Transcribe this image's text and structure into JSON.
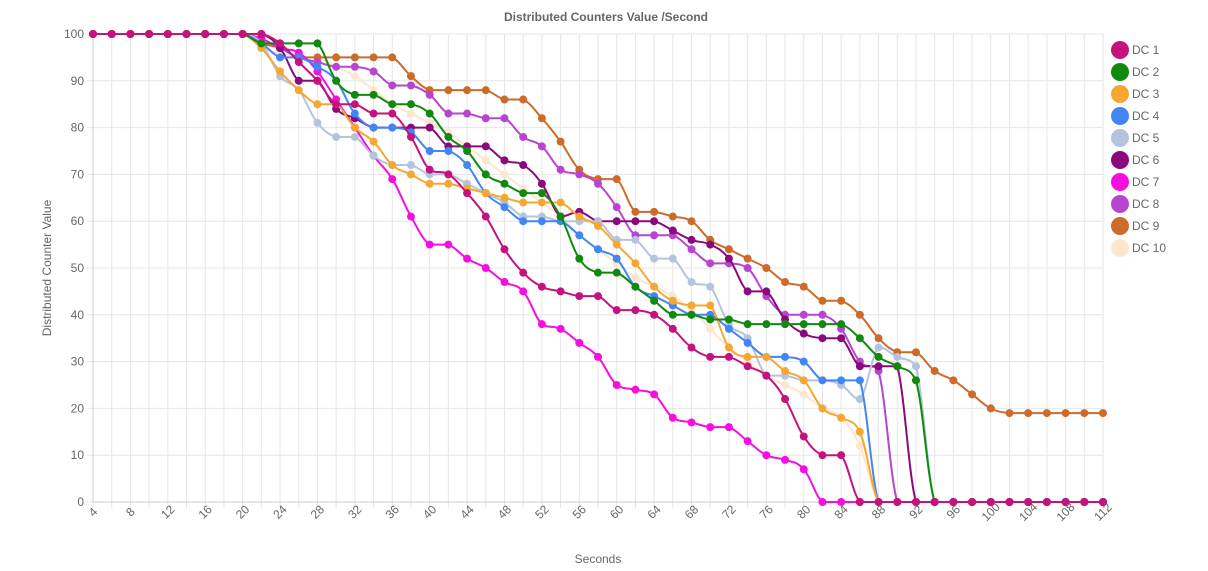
{
  "chart_data": {
    "type": "line",
    "title": "Distributed Counters Value /Second",
    "xlabel": "Seconds",
    "ylabel": "Distributed Counter Value",
    "xlim": [
      4,
      112
    ],
    "ylim": [
      0,
      100
    ],
    "x_ticks": [
      4,
      8,
      12,
      16,
      20,
      24,
      28,
      32,
      36,
      40,
      44,
      48,
      52,
      56,
      60,
      64,
      68,
      72,
      76,
      80,
      84,
      88,
      92,
      96,
      100,
      104,
      108,
      112
    ],
    "y_ticks": [
      0,
      10,
      20,
      30,
      40,
      50,
      60,
      70,
      80,
      90,
      100
    ],
    "grid": true,
    "legend_position": "right",
    "series": [
      {
        "name": "DC 1",
        "color": "#c4127f",
        "x": [
          4,
          6,
          8,
          10,
          12,
          14,
          16,
          18,
          20,
          22,
          24,
          26,
          28,
          30,
          32,
          34,
          36,
          38,
          40,
          42,
          44,
          46,
          48,
          50,
          52,
          54,
          56,
          58,
          60,
          62,
          64,
          66,
          68,
          70,
          72,
          74,
          76,
          78,
          80,
          82,
          84,
          86,
          88,
          90,
          92,
          94,
          96,
          98,
          100,
          102,
          104,
          106,
          108,
          110,
          112
        ],
        "y": [
          100,
          100,
          100,
          100,
          100,
          100,
          100,
          100,
          100,
          100,
          98,
          94,
          90,
          85,
          85,
          83,
          83,
          78,
          71,
          70,
          66,
          61,
          54,
          49,
          46,
          45,
          44,
          44,
          41,
          41,
          40,
          37,
          33,
          31,
          31,
          29,
          27,
          22,
          14,
          10,
          10,
          0,
          0,
          0,
          0,
          0,
          0,
          0,
          0,
          0,
          0,
          0,
          0,
          0,
          0
        ]
      },
      {
        "name": "DC 2",
        "color": "#0f8a0f",
        "x": [
          4,
          6,
          8,
          10,
          12,
          14,
          16,
          18,
          20,
          22,
          24,
          26,
          28,
          30,
          32,
          34,
          36,
          38,
          40,
          42,
          44,
          46,
          48,
          50,
          52,
          54,
          56,
          58,
          60,
          62,
          64,
          66,
          68,
          70,
          72,
          74,
          76,
          78,
          80,
          82,
          84,
          86,
          88,
          90,
          92,
          94,
          96,
          98,
          100,
          102,
          104,
          106,
          108,
          110,
          112
        ],
        "y": [
          100,
          100,
          100,
          100,
          100,
          100,
          100,
          100,
          100,
          98,
          98,
          98,
          98,
          90,
          87,
          87,
          85,
          85,
          83,
          78,
          75,
          70,
          68,
          66,
          66,
          61,
          52,
          49,
          49,
          46,
          43,
          40,
          40,
          39,
          39,
          38,
          38,
          38,
          38,
          38,
          38,
          35,
          31,
          29,
          26,
          0,
          0,
          0,
          0,
          0,
          0,
          0,
          0,
          0,
          0
        ]
      },
      {
        "name": "DC 3",
        "color": "#f5a732",
        "x": [
          4,
          6,
          8,
          10,
          12,
          14,
          16,
          18,
          20,
          22,
          24,
          26,
          28,
          30,
          32,
          34,
          36,
          38,
          40,
          42,
          44,
          46,
          48,
          50,
          52,
          54,
          56,
          58,
          60,
          62,
          64,
          66,
          68,
          70,
          72,
          74,
          76,
          78,
          80,
          82,
          84,
          86,
          88,
          90,
          92,
          94,
          96,
          98,
          100,
          102,
          104,
          106,
          108,
          110,
          112
        ],
        "y": [
          100,
          100,
          100,
          100,
          100,
          100,
          100,
          100,
          100,
          97,
          92,
          88,
          85,
          85,
          80,
          77,
          72,
          70,
          68,
          68,
          67,
          66,
          65,
          64,
          64,
          64,
          61,
          59,
          55,
          51,
          46,
          43,
          42,
          42,
          33,
          31,
          31,
          28,
          26,
          20,
          18,
          15,
          0,
          0,
          0,
          0,
          0,
          0,
          0,
          0,
          0,
          0,
          0,
          0,
          0
        ]
      },
      {
        "name": "DC 4",
        "color": "#4286f4",
        "x": [
          4,
          6,
          8,
          10,
          12,
          14,
          16,
          18,
          20,
          22,
          24,
          26,
          28,
          30,
          32,
          34,
          36,
          38,
          40,
          42,
          44,
          46,
          48,
          50,
          52,
          54,
          56,
          58,
          60,
          62,
          64,
          66,
          68,
          70,
          72,
          74,
          76,
          78,
          80,
          82,
          84,
          86,
          88,
          90,
          92,
          94,
          96,
          98,
          100,
          102,
          104,
          106,
          108,
          110,
          112
        ],
        "y": [
          100,
          100,
          100,
          100,
          100,
          100,
          100,
          100,
          100,
          98,
          95,
          95,
          93,
          90,
          83,
          80,
          80,
          79,
          75,
          75,
          72,
          66,
          63,
          60,
          60,
          60,
          57,
          54,
          52,
          46,
          44,
          42,
          40,
          40,
          37,
          34,
          31,
          31,
          30,
          26,
          26,
          26,
          0,
          0,
          0,
          0,
          0,
          0,
          0,
          0,
          0,
          0,
          0,
          0,
          0
        ]
      },
      {
        "name": "DC 5",
        "color": "#b4c4de",
        "x": [
          4,
          6,
          8,
          10,
          12,
          14,
          16,
          18,
          20,
          22,
          24,
          26,
          28,
          30,
          32,
          34,
          36,
          38,
          40,
          42,
          44,
          46,
          48,
          50,
          52,
          54,
          56,
          58,
          60,
          62,
          64,
          66,
          68,
          70,
          72,
          74,
          76,
          78,
          80,
          82,
          84,
          86,
          88,
          90,
          92,
          94,
          96,
          98,
          100,
          102,
          104,
          106,
          108,
          110,
          112
        ],
        "y": [
          100,
          100,
          100,
          100,
          100,
          100,
          100,
          100,
          100,
          98,
          91,
          88,
          81,
          78,
          78,
          74,
          72,
          72,
          70,
          70,
          68,
          66,
          64,
          61,
          61,
          60,
          60,
          60,
          56,
          56,
          52,
          52,
          47,
          46,
          38,
          35,
          27,
          27,
          26,
          26,
          25,
          22,
          33,
          31,
          29,
          0,
          0,
          0,
          0,
          0,
          0,
          0,
          0,
          0,
          0
        ]
      },
      {
        "name": "DC 6",
        "color": "#8a0a7d",
        "x": [
          4,
          6,
          8,
          10,
          12,
          14,
          16,
          18,
          20,
          22,
          24,
          26,
          28,
          30,
          32,
          34,
          36,
          38,
          40,
          42,
          44,
          46,
          48,
          50,
          52,
          54,
          56,
          58,
          60,
          62,
          64,
          66,
          68,
          70,
          72,
          74,
          76,
          78,
          80,
          82,
          84,
          86,
          88,
          90,
          92,
          94,
          96,
          98,
          100,
          102,
          104,
          106,
          108,
          110,
          112
        ],
        "y": [
          100,
          100,
          100,
          100,
          100,
          100,
          100,
          100,
          100,
          100,
          97,
          90,
          90,
          84,
          82,
          80,
          80,
          80,
          80,
          76,
          76,
          76,
          73,
          72,
          68,
          61,
          62,
          60,
          60,
          60,
          60,
          58,
          56,
          55,
          52,
          45,
          45,
          39,
          36,
          35,
          35,
          29,
          29,
          29,
          0,
          0,
          0,
          0,
          0,
          0,
          0,
          0,
          0,
          0,
          0
        ]
      },
      {
        "name": "DC 7",
        "color": "#f50fdf",
        "x": [
          4,
          6,
          8,
          10,
          12,
          14,
          16,
          18,
          20,
          22,
          24,
          26,
          28,
          30,
          32,
          34,
          36,
          38,
          40,
          42,
          44,
          46,
          48,
          50,
          52,
          54,
          56,
          58,
          60,
          62,
          64,
          66,
          68,
          70,
          72,
          74,
          76,
          78,
          80,
          82,
          84,
          86,
          88,
          90,
          92,
          94,
          96,
          98,
          100,
          102,
          104,
          106,
          108,
          110,
          112
        ],
        "y": [
          100,
          100,
          100,
          100,
          100,
          100,
          100,
          100,
          100,
          99,
          97,
          96,
          92,
          86,
          80,
          74,
          69,
          61,
          55,
          55,
          52,
          50,
          47,
          45,
          38,
          37,
          34,
          31,
          25,
          24,
          23,
          18,
          17,
          16,
          16,
          13,
          10,
          9,
          7,
          0,
          0,
          0,
          0,
          0,
          0,
          0,
          0,
          0,
          0,
          0,
          0,
          0,
          0,
          0,
          0
        ]
      },
      {
        "name": "DC 8",
        "color": "#b845d1",
        "x": [
          4,
          6,
          8,
          10,
          12,
          14,
          16,
          18,
          20,
          22,
          24,
          26,
          28,
          30,
          32,
          34,
          36,
          38,
          40,
          42,
          44,
          46,
          48,
          50,
          52,
          54,
          56,
          58,
          60,
          62,
          64,
          66,
          68,
          70,
          72,
          74,
          76,
          78,
          80,
          82,
          84,
          86,
          88,
          90,
          92,
          94,
          96,
          98,
          100,
          102,
          104,
          106,
          108,
          110,
          112
        ],
        "y": [
          100,
          100,
          100,
          100,
          100,
          100,
          100,
          100,
          100,
          99,
          97,
          95,
          94,
          93,
          93,
          92,
          89,
          89,
          87,
          83,
          83,
          82,
          82,
          78,
          76,
          71,
          70,
          68,
          63,
          57,
          57,
          57,
          54,
          51,
          51,
          50,
          44,
          40,
          40,
          40,
          37,
          30,
          28,
          0,
          0,
          0,
          0,
          0,
          0,
          0,
          0,
          0,
          0,
          0,
          0
        ]
      },
      {
        "name": "DC 9",
        "color": "#cc6b2a",
        "x": [
          4,
          6,
          8,
          10,
          12,
          14,
          16,
          18,
          20,
          22,
          24,
          26,
          28,
          30,
          32,
          34,
          36,
          38,
          40,
          42,
          44,
          46,
          48,
          50,
          52,
          54,
          56,
          58,
          60,
          62,
          64,
          66,
          68,
          70,
          72,
          74,
          76,
          78,
          80,
          82,
          84,
          86,
          88,
          90,
          92,
          94,
          96,
          98,
          100,
          102,
          104,
          106,
          108,
          110,
          112
        ],
        "y": [
          100,
          100,
          100,
          100,
          100,
          100,
          100,
          100,
          100,
          98,
          97,
          95,
          95,
          95,
          95,
          95,
          95,
          91,
          88,
          88,
          88,
          88,
          86,
          86,
          82,
          77,
          71,
          69,
          69,
          62,
          62,
          61,
          60,
          56,
          54,
          52,
          50,
          47,
          46,
          43,
          43,
          40,
          35,
          32,
          32,
          28,
          26,
          23,
          20,
          19,
          19,
          19,
          19,
          19,
          19
        ]
      },
      {
        "name": "DC 10",
        "color": "#fde6cb",
        "x": [
          4,
          6,
          8,
          10,
          12,
          14,
          16,
          18,
          20,
          22,
          24,
          26,
          28,
          30,
          32,
          34,
          36,
          38,
          40,
          42,
          44,
          46,
          48,
          50,
          52,
          54,
          56,
          58,
          60,
          62,
          64,
          66,
          68,
          70,
          72,
          74,
          76,
          78,
          80,
          82,
          84,
          86,
          88,
          90,
          92,
          94,
          96,
          98,
          100,
          102,
          104,
          106,
          108,
          110,
          112
        ],
        "y": [
          100,
          100,
          100,
          100,
          100,
          100,
          100,
          100,
          100,
          97,
          96,
          95,
          95,
          93,
          91,
          88,
          85,
          83,
          81,
          79,
          76,
          73,
          70,
          67,
          64,
          61,
          57,
          54,
          51,
          48,
          46,
          44,
          41,
          37,
          33,
          30,
          27,
          25,
          23,
          20,
          18,
          12,
          0,
          0,
          0,
          0,
          0,
          0,
          0,
          0,
          0,
          0,
          0,
          0,
          0
        ]
      }
    ]
  }
}
